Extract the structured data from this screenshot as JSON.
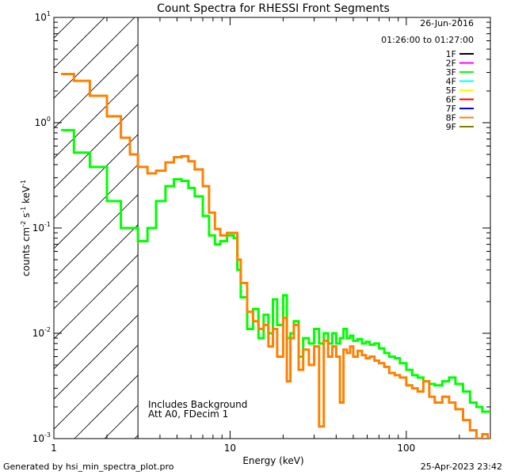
{
  "chart_data": {
    "type": "line",
    "title": "Count Spectra for RHESSI Front Segments",
    "xlabel": "Energy (keV)",
    "ylabel": "counts cm-2 s-1 keV-1",
    "ylabel_parts": {
      "base": "counts cm",
      "exp1": "-2",
      "mid1": " s",
      "exp2": "-1",
      "mid2": " keV",
      "exp3": "-1"
    },
    "xscale": "log",
    "yscale": "log",
    "xlim": [
      1,
      300
    ],
    "ylim": [
      0.001,
      10
    ],
    "x_ticks": [
      {
        "value": 1,
        "label": "1"
      },
      {
        "value": 10,
        "label": "10"
      },
      {
        "value": 100,
        "label": "100"
      }
    ],
    "y_ticks": [
      {
        "value": 0.001,
        "base": "10",
        "exp": "-3"
      },
      {
        "value": 0.01,
        "base": "10",
        "exp": "-2"
      },
      {
        "value": 0.1,
        "base": "10",
        "exp": "-1"
      },
      {
        "value": 1,
        "base": "10",
        "exp": "0"
      },
      {
        "value": 10,
        "base": "10",
        "exp": "1"
      }
    ],
    "hatched_region": {
      "x_from": 1,
      "x_to": 3
    },
    "date": "26-Jun-2016",
    "time_range": "01:26:00 to 01:27:00",
    "legend": [
      {
        "label": "1F",
        "color": "#000000"
      },
      {
        "label": "2F",
        "color": "#ff00ff"
      },
      {
        "label": "3F",
        "color": "#00ff00"
      },
      {
        "label": "4F",
        "color": "#00ffff"
      },
      {
        "label": "5F",
        "color": "#ffff00"
      },
      {
        "label": "6F",
        "color": "#ff0000"
      },
      {
        "label": "7F",
        "color": "#0000ff"
      },
      {
        "label": "8F",
        "color": "#ff8000"
      },
      {
        "label": "9F",
        "color": "#808000"
      }
    ],
    "annotations": [
      "Includes Background",
      "Att A0, FDecim 1"
    ],
    "series": [
      {
        "name": "3F",
        "color": "#00ff00",
        "points": [
          [
            1.1,
            0.85
          ],
          [
            1.3,
            0.52
          ],
          [
            1.6,
            0.38
          ],
          [
            2.0,
            0.18
          ],
          [
            2.4,
            0.1
          ],
          [
            3.0,
            0.075
          ],
          [
            3.4,
            0.1
          ],
          [
            3.8,
            0.18
          ],
          [
            4.3,
            0.25
          ],
          [
            4.8,
            0.29
          ],
          [
            5.3,
            0.28
          ],
          [
            5.8,
            0.24
          ],
          [
            6.3,
            0.2
          ],
          [
            7.0,
            0.13
          ],
          [
            7.6,
            0.085
          ],
          [
            8.2,
            0.07
          ],
          [
            8.8,
            0.075
          ],
          [
            9.6,
            0.085
          ],
          [
            10.5,
            0.08
          ],
          [
            11.0,
            0.04
          ],
          [
            11.5,
            0.022
          ],
          [
            12.5,
            0.011
          ],
          [
            13.5,
            0.017
          ],
          [
            14.5,
            0.009
          ],
          [
            15.5,
            0.015
          ],
          [
            16.5,
            0.01
          ],
          [
            17.5,
            0.021
          ],
          [
            18.5,
            0.012
          ],
          [
            20,
            0.023
          ],
          [
            21,
            0.009
          ],
          [
            22,
            0.01
          ],
          [
            23,
            0.013
          ],
          [
            24.5,
            0.006
          ],
          [
            26,
            0.009
          ],
          [
            28,
            0.008
          ],
          [
            30,
            0.011
          ],
          [
            32,
            0.008
          ],
          [
            34,
            0.01
          ],
          [
            36,
            0.008
          ],
          [
            38,
            0.01
          ],
          [
            40,
            0.008
          ],
          [
            42,
            0.009
          ],
          [
            44,
            0.011
          ],
          [
            46,
            0.009
          ],
          [
            48,
            0.0095
          ],
          [
            50,
            0.0085
          ],
          [
            53,
            0.0088
          ],
          [
            56,
            0.008
          ],
          [
            59,
            0.0083
          ],
          [
            62,
            0.0078
          ],
          [
            66,
            0.008
          ],
          [
            70,
            0.0072
          ],
          [
            75,
            0.0065
          ],
          [
            80,
            0.006
          ],
          [
            86,
            0.0058
          ],
          [
            92,
            0.0052
          ],
          [
            100,
            0.0045
          ],
          [
            108,
            0.004
          ],
          [
            116,
            0.0038
          ],
          [
            125,
            0.0035
          ],
          [
            135,
            0.0033
          ],
          [
            145,
            0.0032
          ],
          [
            160,
            0.0035
          ],
          [
            175,
            0.0038
          ],
          [
            190,
            0.0033
          ],
          [
            210,
            0.0028
          ],
          [
            230,
            0.0022
          ],
          [
            250,
            0.002
          ],
          [
            270,
            0.0018
          ],
          [
            290,
            0.0018
          ]
        ]
      },
      {
        "name": "8F",
        "color": "#ff8000",
        "points": [
          [
            1.1,
            2.9
          ],
          [
            1.3,
            2.5
          ],
          [
            1.6,
            1.8
          ],
          [
            2.0,
            1.15
          ],
          [
            2.4,
            0.72
          ],
          [
            2.7,
            0.5
          ],
          [
            3.0,
            0.38
          ],
          [
            3.4,
            0.33
          ],
          [
            3.8,
            0.35
          ],
          [
            4.3,
            0.42
          ],
          [
            4.8,
            0.47
          ],
          [
            5.3,
            0.48
          ],
          [
            5.8,
            0.43
          ],
          [
            6.3,
            0.36
          ],
          [
            7.0,
            0.25
          ],
          [
            7.6,
            0.14
          ],
          [
            8.2,
            0.098
          ],
          [
            8.8,
            0.085
          ],
          [
            9.6,
            0.09
          ],
          [
            10.5,
            0.09
          ],
          [
            11.0,
            0.05
          ],
          [
            11.5,
            0.03
          ],
          [
            12.5,
            0.016
          ],
          [
            13.5,
            0.013
          ],
          [
            14.5,
            0.011
          ],
          [
            15.5,
            0.012
          ],
          [
            16.5,
            0.0075
          ],
          [
            17.5,
            0.011
          ],
          [
            18.5,
            0.006
          ],
          [
            20,
            0.014
          ],
          [
            21,
            0.0035
          ],
          [
            22,
            0.009
          ],
          [
            23,
            0.012
          ],
          [
            24.5,
            0.0045
          ],
          [
            26,
            0.007
          ],
          [
            28,
            0.005
          ],
          [
            30,
            0.0075
          ],
          [
            32,
            0.0013
          ],
          [
            34,
            0.0085
          ],
          [
            36,
            0.006
          ],
          [
            38,
            0.0075
          ],
          [
            40,
            0.006
          ],
          [
            42,
            0.0022
          ],
          [
            44,
            0.007
          ],
          [
            46,
            0.0065
          ],
          [
            48,
            0.0075
          ],
          [
            50,
            0.006
          ],
          [
            53,
            0.0068
          ],
          [
            56,
            0.0062
          ],
          [
            59,
            0.0058
          ],
          [
            62,
            0.006
          ],
          [
            66,
            0.0055
          ],
          [
            70,
            0.0052
          ],
          [
            75,
            0.0048
          ],
          [
            80,
            0.0042
          ],
          [
            86,
            0.004
          ],
          [
            92,
            0.0038
          ],
          [
            100,
            0.0032
          ],
          [
            108,
            0.003
          ],
          [
            116,
            0.0028
          ],
          [
            125,
            0.0035
          ],
          [
            135,
            0.0025
          ],
          [
            145,
            0.0022
          ],
          [
            160,
            0.0025
          ],
          [
            175,
            0.0022
          ],
          [
            190,
            0.0019
          ],
          [
            210,
            0.0015
          ],
          [
            230,
            0.0012
          ],
          [
            250,
            0.001
          ],
          [
            270,
            0.0011
          ],
          [
            290,
            0.001
          ]
        ]
      }
    ]
  },
  "footer": {
    "generated_by": "Generated by hsi_min_spectra_plot.pro",
    "timestamp": "25-Apr-2023 23:42"
  }
}
